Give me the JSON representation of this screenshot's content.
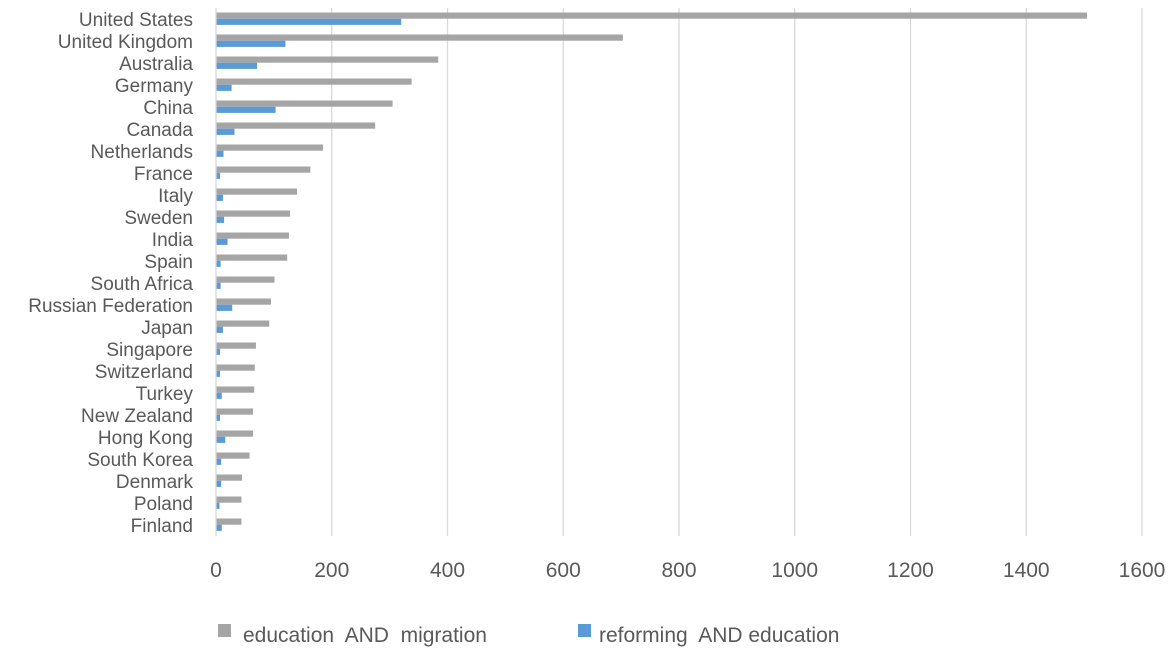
{
  "chart_data": {
    "type": "bar",
    "orientation": "horizontal",
    "categories": [
      "United States",
      "United Kingdom",
      "Australia",
      "Germany",
      "China",
      "Canada",
      "Netherlands",
      "France",
      "Italy",
      "Sweden",
      "India",
      "Spain",
      "South Africa",
      "Russian Federation",
      "Japan",
      "Singapore",
      "Switzerland",
      "Turkey",
      "New Zealand",
      "Hong Kong",
      "South Korea",
      "Denmark",
      "Poland",
      "Finland"
    ],
    "series": [
      {
        "name": "education  AND  migration",
        "color": "#a5a5a5",
        "values": [
          1505,
          703,
          384,
          338,
          305,
          275,
          185,
          163,
          140,
          128,
          126,
          123,
          101,
          95,
          92,
          69,
          67,
          66,
          64,
          64,
          58,
          45,
          44,
          44
        ]
      },
      {
        "name": "reforming  AND education",
        "color": "#5b9bd5",
        "values": [
          320,
          120,
          71,
          27,
          103,
          32,
          13,
          7,
          12,
          14,
          20,
          8,
          8,
          28,
          12,
          7,
          7,
          10,
          7,
          16,
          9,
          9,
          6,
          10
        ]
      }
    ],
    "x_ticks": [
      "0",
      "200",
      "400",
      "600",
      "800",
      "1000",
      "1200",
      "1400",
      "1600"
    ],
    "xlim": [
      0,
      1600
    ],
    "grid": true,
    "legend_position": "bottom",
    "title": "",
    "xlabel": "",
    "ylabel": ""
  }
}
